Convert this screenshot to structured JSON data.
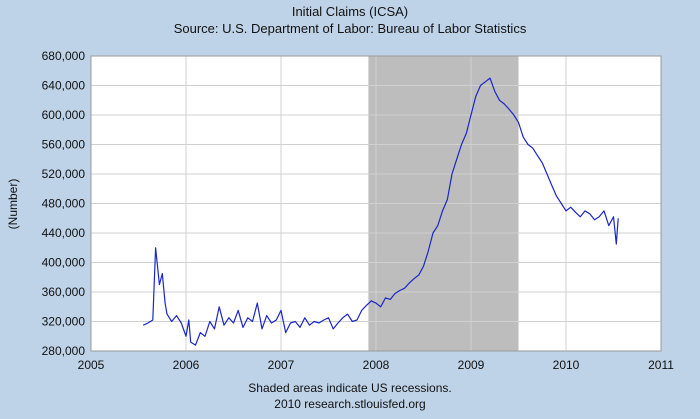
{
  "chart_data": {
    "type": "line",
    "title": "Initial Claims (ICSA)",
    "subtitle": "Source: U.S. Department of Labor: Bureau of Labor Statistics",
    "xlabel": "",
    "ylabel": "(Number)",
    "xlim": [
      2005,
      2011
    ],
    "ylim": [
      280000,
      680000
    ],
    "x_ticks": [
      2005,
      2006,
      2007,
      2008,
      2009,
      2010,
      2011
    ],
    "x_tick_labels": [
      "2005",
      "2006",
      "2007",
      "2008",
      "2009",
      "2010",
      "2011"
    ],
    "y_ticks": [
      280000,
      320000,
      360000,
      400000,
      440000,
      480000,
      520000,
      560000,
      600000,
      640000,
      680000
    ],
    "y_tick_labels": [
      "280,000",
      "320,000",
      "360,000",
      "400,000",
      "440,000",
      "480,000",
      "520,000",
      "560,000",
      "600,000",
      "640,000",
      "680,000"
    ],
    "grid": true,
    "shaded_regions": [
      {
        "start": 2007.92,
        "end": 2009.5
      }
    ],
    "series": [
      {
        "color": "#1a26c8",
        "x": [
          2005.55,
          2005.6,
          2005.65,
          2005.68,
          2005.7,
          2005.72,
          2005.75,
          2005.78,
          2005.8,
          2005.85,
          2005.9,
          2005.95,
          2006.0,
          2006.03,
          2006.05,
          2006.1,
          2006.15,
          2006.2,
          2006.25,
          2006.3,
          2006.35,
          2006.4,
          2006.45,
          2006.5,
          2006.55,
          2006.6,
          2006.65,
          2006.7,
          2006.75,
          2006.8,
          2006.85,
          2006.9,
          2006.95,
          2007.0,
          2007.05,
          2007.1,
          2007.15,
          2007.2,
          2007.25,
          2007.3,
          2007.35,
          2007.4,
          2007.45,
          2007.5,
          2007.55,
          2007.6,
          2007.65,
          2007.7,
          2007.75,
          2007.8,
          2007.85,
          2007.9,
          2007.95,
          2008.0,
          2008.05,
          2008.1,
          2008.15,
          2008.2,
          2008.25,
          2008.3,
          2008.35,
          2008.4,
          2008.45,
          2008.5,
          2008.55,
          2008.6,
          2008.65,
          2008.7,
          2008.75,
          2008.8,
          2008.85,
          2008.9,
          2008.95,
          2009.0,
          2009.05,
          2009.1,
          2009.15,
          2009.2,
          2009.25,
          2009.3,
          2009.35,
          2009.4,
          2009.45,
          2009.5,
          2009.55,
          2009.6,
          2009.65,
          2009.7,
          2009.75,
          2009.8,
          2009.85,
          2009.9,
          2009.95,
          2010.0,
          2010.05,
          2010.1,
          2010.15,
          2010.2,
          2010.25,
          2010.3,
          2010.35,
          2010.4,
          2010.45,
          2010.5,
          2010.53,
          2010.55
        ],
        "y": [
          315000,
          318000,
          322000,
          420000,
          395000,
          370000,
          385000,
          345000,
          330000,
          320000,
          328000,
          318000,
          300000,
          322000,
          292000,
          288000,
          305000,
          300000,
          320000,
          310000,
          340000,
          315000,
          325000,
          318000,
          335000,
          312000,
          325000,
          320000,
          345000,
          310000,
          328000,
          318000,
          322000,
          335000,
          305000,
          318000,
          320000,
          312000,
          325000,
          315000,
          320000,
          318000,
          322000,
          325000,
          310000,
          318000,
          325000,
          330000,
          320000,
          322000,
          335000,
          342000,
          348000,
          345000,
          340000,
          352000,
          350000,
          358000,
          362000,
          365000,
          372000,
          378000,
          383000,
          395000,
          415000,
          440000,
          450000,
          470000,
          485000,
          520000,
          540000,
          560000,
          575000,
          600000,
          625000,
          640000,
          645000,
          650000,
          632000,
          620000,
          615000,
          608000,
          600000,
          590000,
          570000,
          560000,
          555000,
          545000,
          535000,
          520000,
          505000,
          490000,
          480000,
          470000,
          475000,
          468000,
          462000,
          470000,
          466000,
          458000,
          462000,
          470000,
          450000,
          462000,
          425000,
          460000
        ]
      }
    ],
    "annotations": [
      "Shaded areas indicate US recessions.",
      "2010 research.stlouisfed.org"
    ]
  }
}
